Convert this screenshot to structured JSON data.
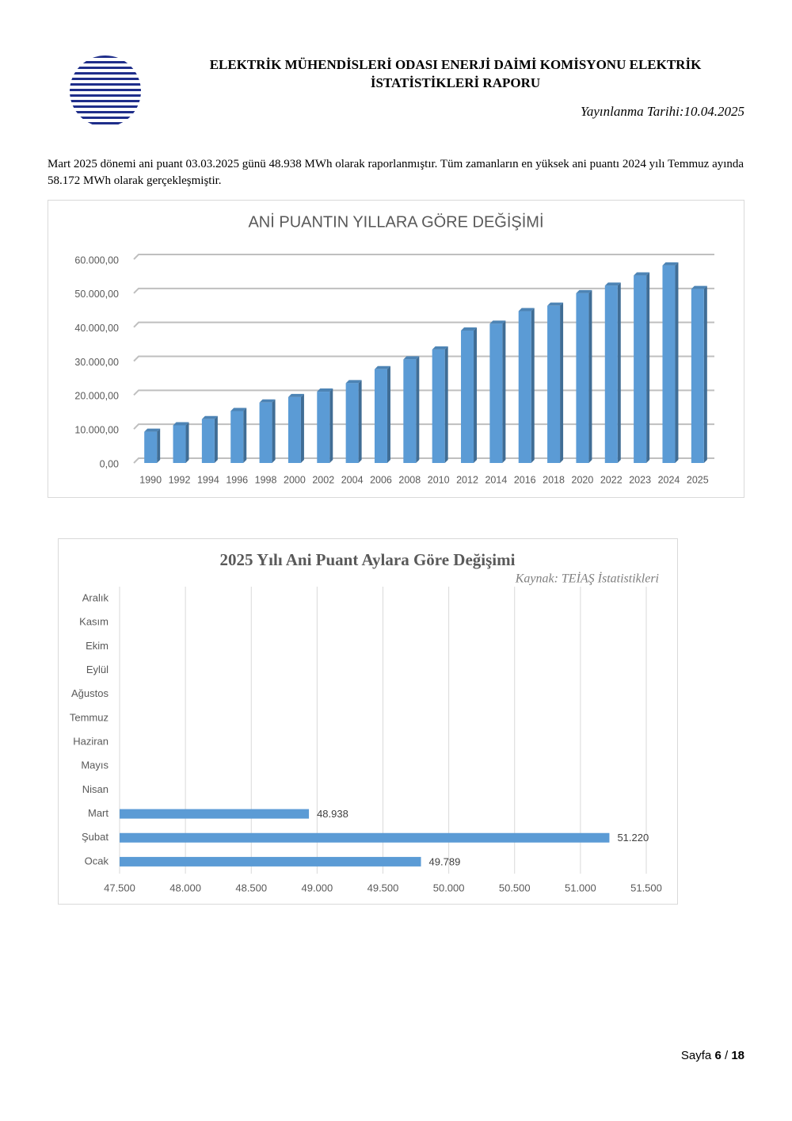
{
  "header": {
    "title": "ELEKTRİK MÜHENDİSLERİ ODASI ENERJİ DAİMİ KOMİSYONU ELEKTRİK İSTATİSTİKLERİ RAPORU",
    "date": "Yayınlanma Tarihi:10.04.2025"
  },
  "paragraph": "Mart 2025 dönemi ani puant 03.03.2025 günü 48.938 MWh olarak raporlanmıştır. Tüm zamanların en yüksek ani puantı 2024 yılı Temmuz ayında 58.172 MWh olarak gerçekleşmiştir.",
  "chart_data": [
    {
      "type": "bar",
      "title": "ANİ PUANTIN YILLARA GÖRE DEĞİŞİMİ",
      "categories": [
        "1990",
        "1992",
        "1994",
        "1996",
        "1998",
        "2000",
        "2002",
        "2004",
        "2006",
        "2008",
        "2010",
        "2012",
        "2014",
        "2016",
        "2018",
        "2020",
        "2022",
        "2023",
        "2024",
        "2025"
      ],
      "values": [
        9200,
        11100,
        12900,
        15300,
        17800,
        19400,
        21000,
        23500,
        27600,
        30500,
        33400,
        39000,
        41000,
        44700,
        46300,
        50000,
        52200,
        55200,
        58172,
        51220
      ],
      "color": "#5b9bd5",
      "ylim": [
        0,
        60000
      ],
      "yticks": [
        {
          "value": 0,
          "label": "0,00"
        },
        {
          "value": 10000,
          "label": "10.000,00"
        },
        {
          "value": 20000,
          "label": "20.000,00"
        },
        {
          "value": 30000,
          "label": "30.000,00"
        },
        {
          "value": 40000,
          "label": "40.000,00"
        },
        {
          "value": 50000,
          "label": "50.000,00"
        },
        {
          "value": 60000,
          "label": "60.000,00"
        }
      ],
      "grid": true
    },
    {
      "type": "barh",
      "title": "2025 Yılı Ani Puant Aylara Göre Değişimi",
      "subtitle": "Kaynak: TEİAŞ İstatistikleri",
      "categories": [
        "Ocak",
        "Şubat",
        "Mart",
        "Nisan",
        "Mayıs",
        "Haziran",
        "Temmuz",
        "Ağustos",
        "Eylül",
        "Ekim",
        "Kasım",
        "Aralık"
      ],
      "values": [
        49789,
        51220,
        48938,
        null,
        null,
        null,
        null,
        null,
        null,
        null,
        null,
        null
      ],
      "value_labels": [
        "49.789",
        "51.220",
        "48.938",
        null,
        null,
        null,
        null,
        null,
        null,
        null,
        null,
        null
      ],
      "color": "#5b9bd5",
      "xlim": [
        47500,
        51500
      ],
      "xticks": [
        {
          "value": 47500,
          "label": "47.500"
        },
        {
          "value": 48000,
          "label": "48.000"
        },
        {
          "value": 48500,
          "label": "48.500"
        },
        {
          "value": 49000,
          "label": "49.000"
        },
        {
          "value": 49500,
          "label": "49.500"
        },
        {
          "value": 50000,
          "label": "50.000"
        },
        {
          "value": 50500,
          "label": "50.500"
        },
        {
          "value": 51000,
          "label": "51.000"
        },
        {
          "value": 51500,
          "label": "51.500"
        }
      ],
      "grid": true
    }
  ],
  "footer": {
    "label": "Sayfa",
    "current": "6",
    "separator": "/",
    "total": "18"
  }
}
